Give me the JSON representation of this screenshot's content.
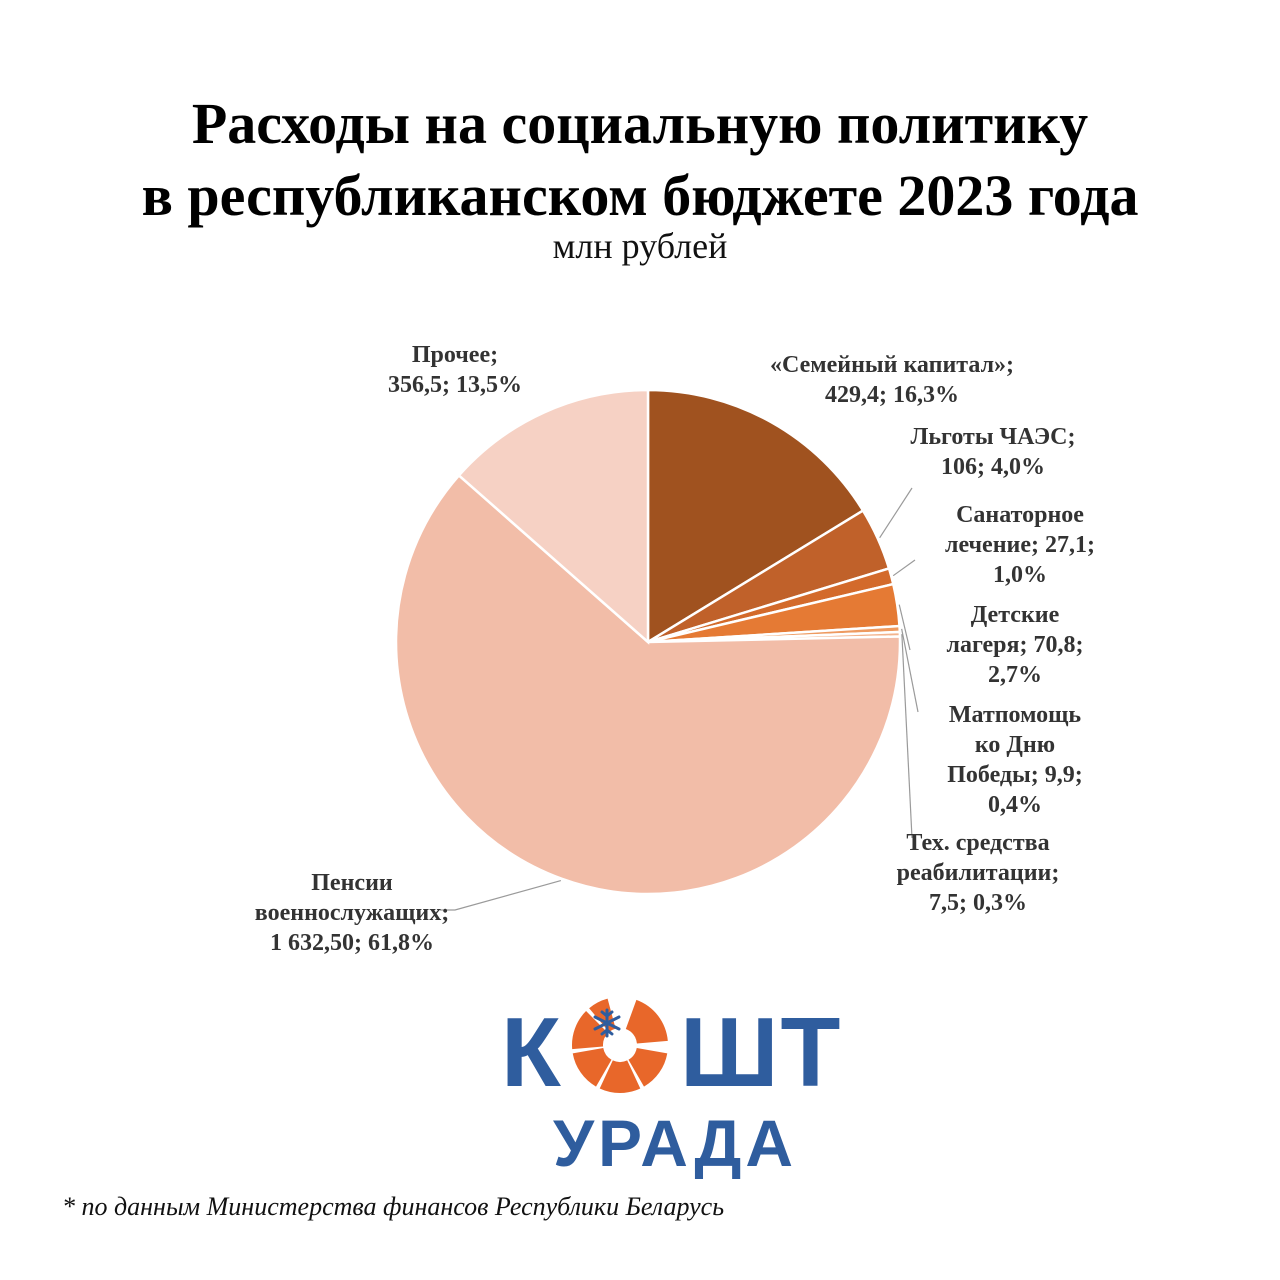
{
  "chart_data": {
    "type": "pie",
    "title_lines": [
      "Расходы на социальную политику",
      "в республиканском бюджете 2023 года"
    ],
    "subtitle": "млн рублей",
    "start_angle": "12 o'clock, clockwise",
    "slices": [
      {
        "name": "«Семейный капитал»",
        "value": 429.4,
        "percent": 16.3,
        "color": "#A0521F",
        "label_lines": [
          "«Семейный капитал»;",
          "429,4; 16,3%"
        ]
      },
      {
        "name": "Льготы ЧАЭС",
        "value": 106,
        "percent": 4.0,
        "color": "#C0612A",
        "label_lines": [
          "Льготы ЧАЭС;",
          "106; 4,0%"
        ]
      },
      {
        "name": "Санаторное лечение",
        "value": 27.1,
        "percent": 1.0,
        "color": "#D36A2B",
        "label_lines": [
          "Санаторное",
          "лечение; 27,1;",
          "1,0%"
        ]
      },
      {
        "name": "Детские лагеря",
        "value": 70.8,
        "percent": 2.7,
        "color": "#E57A34",
        "label_lines": [
          "Детские",
          "лагеря; 70,8;",
          "2,7%"
        ]
      },
      {
        "name": "Матпомощь ко Дню Победы",
        "value": 9.9,
        "percent": 0.4,
        "color": "#EE9A60",
        "label_lines": [
          "Матпомощь",
          "ко Дню",
          "Победы; 9,9;",
          "0,4%"
        ]
      },
      {
        "name": "Тех. средства реабилитации",
        "value": 7.5,
        "percent": 0.3,
        "color": "#F3B38C",
        "label_lines": [
          "Тех. средства",
          "реабилитации;",
          "7,5; 0,3%"
        ]
      },
      {
        "name": "Пенсии военнослужащих",
        "value": 1632.5,
        "percent": 61.8,
        "color": "#F2BDA8",
        "label_lines": [
          "Пенсии",
          "военнослужащих;",
          "1 632,50; 61,8%"
        ]
      },
      {
        "name": "Прочее",
        "value": 356.5,
        "percent": 13.5,
        "color": "#F6D1C4",
        "label_lines": [
          "Прочее;",
          "356,5; 13,5%"
        ]
      }
    ]
  },
  "logo": {
    "letter_left": "К",
    "letters_right": "ШТ",
    "subtitle": "УРАДА",
    "colors": {
      "blue": "#2f5d9e",
      "orange": "#E8672A"
    }
  },
  "footnote": "* по данным Министерства финансов Республики Беларусь"
}
